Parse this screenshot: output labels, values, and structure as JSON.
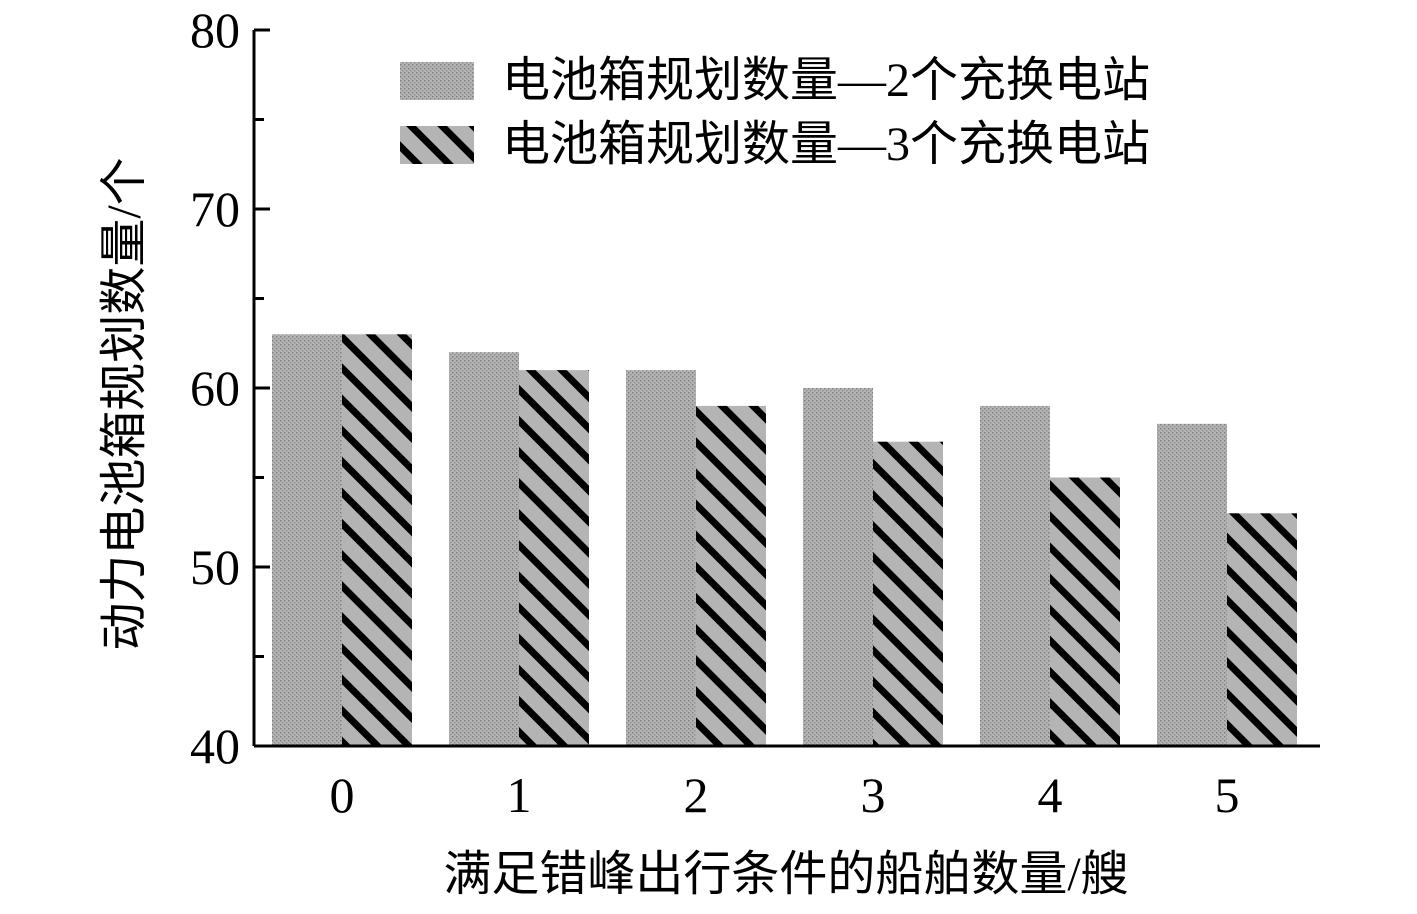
{
  "chart_data": {
    "type": "bar",
    "categories": [
      "0",
      "1",
      "2",
      "3",
      "4",
      "5"
    ],
    "series": [
      {
        "name": "电池箱规划数量—2个充换电站",
        "values": [
          63,
          62,
          61,
          60,
          59,
          58
        ],
        "fill": "dotted-gray"
      },
      {
        "name": "电池箱规划数量—3个充换电站",
        "values": [
          63,
          61,
          59,
          57,
          55,
          53
        ],
        "fill": "hatched-gray"
      }
    ],
    "xlabel": "满足错峰出行条件的船舶数量/艘",
    "ylabel": "动力电池箱规划数量/个",
    "ylim": [
      40,
      80
    ],
    "yticks": [
      "40",
      "50",
      "60",
      "70",
      "80"
    ],
    "grid": false,
    "legend": "top-right",
    "colors": {
      "bar_fill": "#b4b4b4",
      "dot": "#7a7a7a",
      "hatch": "#000000",
      "axis": "#000000"
    }
  }
}
